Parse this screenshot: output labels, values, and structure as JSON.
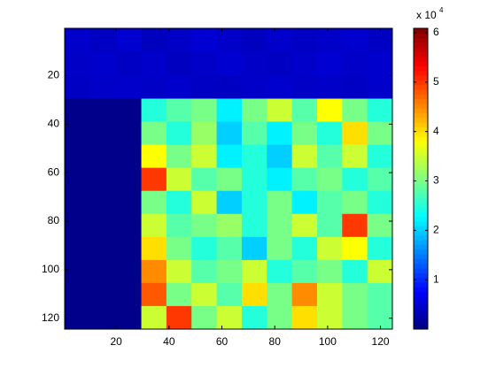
{
  "chart_data": {
    "type": "heatmap",
    "colormap": "jet",
    "xedges": [
      0.5,
      10,
      20,
      29.5,
      39,
      48.5,
      58,
      67.5,
      77,
      86.5,
      96,
      105.5,
      115,
      124.5
    ],
    "yedges": [
      0.5,
      10,
      20,
      29.5,
      39,
      48.5,
      58,
      67.5,
      77,
      86.5,
      96,
      105.5,
      115,
      124.5
    ],
    "xlim": [
      0.5,
      124.5
    ],
    "ylim": [
      0.5,
      124.5
    ],
    "y_reversed": true,
    "xticks": [
      20,
      40,
      60,
      80,
      100,
      120
    ],
    "yticks": [
      20,
      40,
      60,
      80,
      100,
      120
    ],
    "z": [
      [
        4500,
        4000,
        4800,
        3800,
        4200,
        5000,
        4300,
        3900,
        4600,
        4100,
        4400,
        4700,
        4000
      ],
      [
        4200,
        4600,
        4100,
        4500,
        3900,
        4300,
        4800,
        4200,
        4000,
        4500,
        4900,
        4300,
        4600
      ],
      [
        4000,
        4300,
        4500,
        4200,
        4600,
        4100,
        4000,
        4400,
        4700,
        4200,
        4300,
        4100,
        4500
      ],
      [
        600,
        600,
        600,
        25000,
        28000,
        30000,
        22000,
        30000,
        35000,
        28000,
        38000,
        30000,
        25000
      ],
      [
        600,
        600,
        600,
        30000,
        25000,
        32000,
        20000,
        28000,
        22000,
        30000,
        25000,
        40000,
        30000
      ],
      [
        600,
        600,
        600,
        38000,
        30000,
        35000,
        22000,
        25000,
        20000,
        35000,
        28000,
        35000,
        25000
      ],
      [
        600,
        600,
        600,
        50000,
        35000,
        28000,
        30000,
        25000,
        22000,
        28000,
        30000,
        25000,
        28000
      ],
      [
        600,
        600,
        600,
        30000,
        25000,
        35000,
        20000,
        25000,
        30000,
        22000,
        28000,
        30000,
        25000
      ],
      [
        600,
        600,
        600,
        35000,
        28000,
        30000,
        32000,
        25000,
        30000,
        35000,
        28000,
        50000,
        30000
      ],
      [
        600,
        600,
        600,
        40000,
        30000,
        25000,
        28000,
        20000,
        30000,
        25000,
        35000,
        38000,
        25000
      ],
      [
        600,
        600,
        600,
        45000,
        35000,
        28000,
        30000,
        35000,
        25000,
        28000,
        30000,
        25000,
        35000
      ],
      [
        600,
        600,
        600,
        48000,
        30000,
        35000,
        28000,
        40000,
        30000,
        45000,
        35000,
        30000,
        28000
      ],
      [
        600,
        600,
        600,
        35000,
        50000,
        30000,
        35000,
        25000,
        30000,
        40000,
        35000,
        30000,
        28000
      ]
    ],
    "clim": [
      0,
      60900
    ],
    "colorbar_ticks": [
      {
        "value": 10000,
        "label": "1"
      },
      {
        "value": 20000,
        "label": "2"
      },
      {
        "value": 30000,
        "label": "3"
      },
      {
        "value": 40000,
        "label": "4"
      },
      {
        "value": 50000,
        "label": "5"
      },
      {
        "value": 60000,
        "label": "6"
      }
    ],
    "colorbar_multiplier": "x 10",
    "colorbar_exponent": "4"
  }
}
